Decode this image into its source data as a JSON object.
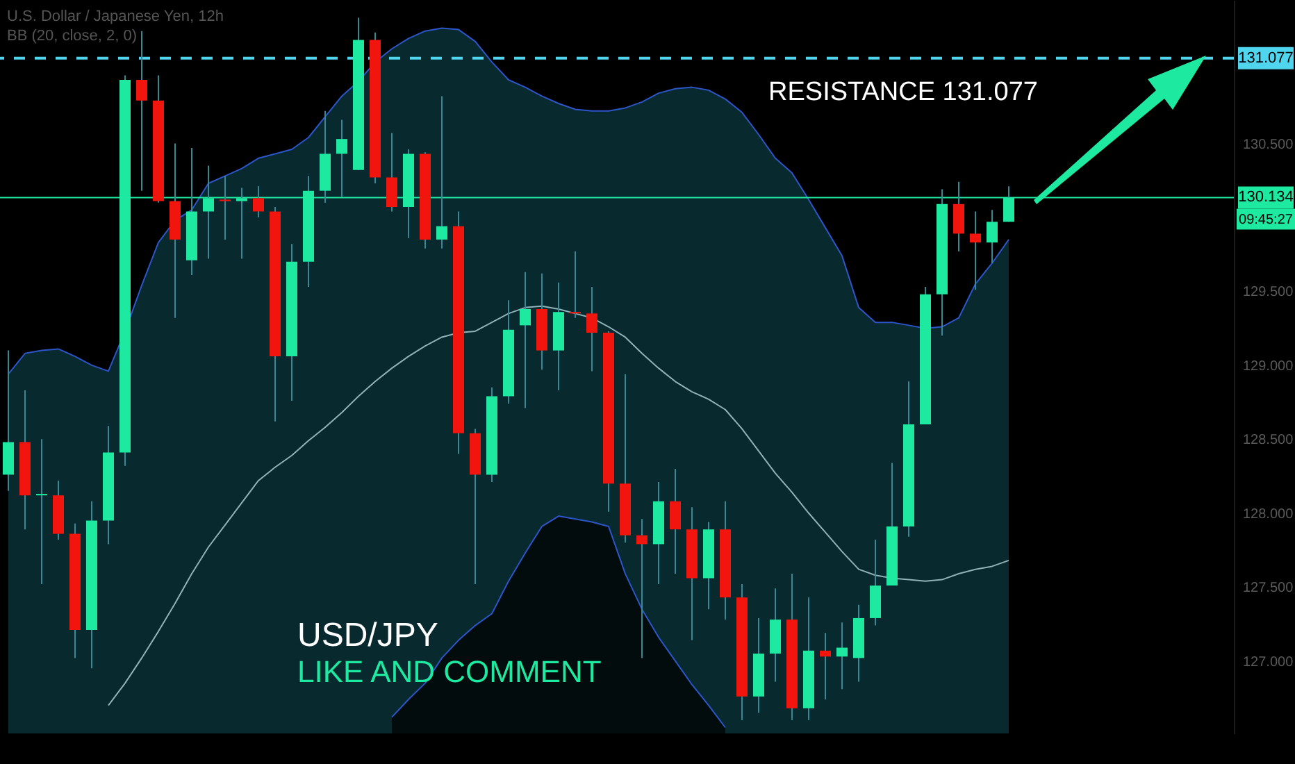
{
  "chart_data": {
    "type": "candlestick",
    "title": "U.S. Dollar / Japanese Yen, 12h",
    "subtitle": "BB (20, close, 2, 0)",
    "categories": [
      null,
      null,
      null,
      null,
      null,
      null,
      null,
      null,
      null,
      null,
      null,
      null,
      null,
      null,
      null,
      null,
      null,
      null,
      null,
      null,
      null,
      null,
      null,
      null,
      null,
      null,
      null,
      null,
      null,
      null,
      null,
      null,
      null,
      null,
      null,
      null,
      null,
      null,
      null,
      null,
      null,
      null,
      null,
      null,
      null,
      null,
      null,
      null,
      null,
      null,
      null,
      null,
      null,
      null,
      null,
      null,
      null,
      null,
      null,
      null,
      null,
      null,
      null,
      null,
      null,
      null,
      null,
      null,
      null,
      null,
      null,
      null,
      null,
      null
    ],
    "ohlc": [
      [
        128.26,
        129.1,
        128.15,
        128.48
      ],
      [
        128.48,
        128.83,
        127.89,
        128.12
      ],
      [
        128.12,
        128.5,
        127.52,
        128.13
      ],
      [
        128.12,
        128.22,
        127.82,
        127.86
      ],
      [
        127.86,
        127.93,
        127.02,
        127.21
      ],
      [
        127.21,
        128.08,
        126.95,
        127.95
      ],
      [
        127.95,
        128.59,
        127.79,
        128.41
      ],
      [
        128.41,
        130.96,
        128.32,
        130.93
      ],
      [
        130.93,
        131.26,
        130.18,
        130.79
      ],
      [
        130.79,
        130.96,
        130.1,
        130.11
      ],
      [
        130.11,
        130.5,
        129.32,
        129.85
      ],
      [
        129.71,
        130.47,
        129.61,
        130.04
      ],
      [
        130.04,
        130.35,
        129.72,
        130.13
      ],
      [
        130.12,
        130.28,
        129.85,
        130.11
      ],
      [
        130.11,
        130.2,
        129.72,
        130.13
      ],
      [
        130.13,
        130.21,
        130.0,
        130.04
      ],
      [
        130.04,
        130.07,
        128.62,
        129.06
      ],
      [
        129.06,
        129.82,
        128.76,
        129.7
      ],
      [
        129.7,
        130.28,
        129.53,
        130.18
      ],
      [
        130.18,
        130.72,
        130.1,
        130.43
      ],
      [
        130.43,
        130.66,
        130.14,
        130.53
      ],
      [
        130.32,
        131.35,
        130.32,
        131.2
      ],
      [
        131.2,
        131.25,
        130.23,
        130.27
      ],
      [
        130.27,
        130.57,
        130.04,
        130.07
      ],
      [
        130.07,
        130.46,
        129.86,
        130.43
      ],
      [
        130.43,
        130.44,
        129.79,
        129.85
      ],
      [
        129.85,
        130.82,
        129.79,
        129.94
      ],
      [
        129.94,
        130.04,
        128.4,
        128.54
      ],
      [
        128.54,
        128.57,
        127.52,
        128.26
      ],
      [
        128.26,
        128.85,
        128.21,
        128.79
      ],
      [
        128.79,
        129.44,
        128.74,
        129.24
      ],
      [
        129.27,
        129.63,
        128.71,
        129.38
      ],
      [
        129.38,
        129.62,
        128.97,
        129.1
      ],
      [
        129.1,
        129.56,
        128.83,
        129.36
      ],
      [
        129.36,
        129.77,
        129.32,
        129.35
      ],
      [
        129.35,
        129.53,
        128.96,
        129.22
      ],
      [
        129.22,
        129.23,
        128.01,
        128.2
      ],
      [
        128.2,
        128.94,
        127.8,
        127.85
      ],
      [
        127.85,
        127.96,
        127.02,
        127.79
      ],
      [
        127.79,
        128.21,
        127.52,
        128.08
      ],
      [
        128.08,
        128.3,
        127.59,
        127.89
      ],
      [
        127.89,
        128.04,
        127.14,
        127.56
      ],
      [
        127.56,
        127.94,
        127.35,
        127.89
      ],
      [
        127.89,
        128.08,
        127.28,
        127.43
      ],
      [
        127.43,
        127.52,
        126.6,
        126.76
      ],
      [
        126.76,
        127.29,
        126.65,
        127.05
      ],
      [
        127.05,
        127.49,
        126.86,
        127.28
      ],
      [
        127.28,
        127.59,
        126.6,
        126.68
      ],
      [
        126.68,
        127.43,
        126.6,
        127.07
      ],
      [
        127.07,
        127.19,
        126.74,
        127.03
      ],
      [
        127.03,
        127.26,
        126.81,
        127.09
      ],
      [
        127.02,
        127.38,
        126.86,
        127.29
      ],
      [
        127.29,
        127.82,
        127.24,
        127.51
      ],
      [
        127.51,
        128.34,
        127.51,
        127.91
      ],
      [
        127.91,
        128.89,
        127.84,
        128.6
      ],
      [
        128.6,
        129.53,
        128.6,
        129.48
      ],
      [
        129.48,
        130.19,
        129.2,
        130.09
      ],
      [
        130.09,
        130.24,
        129.77,
        129.89
      ],
      [
        129.89,
        130.04,
        129.51,
        129.83
      ],
      [
        129.83,
        130.05,
        129.69,
        129.97
      ],
      [
        129.97,
        130.21,
        129.97,
        130.134
      ],
      null,
      null,
      null,
      null,
      null,
      null,
      null,
      null,
      null,
      null,
      null,
      null,
      null
    ],
    "series": [
      {
        "type": "area",
        "color": "#0b3a42",
        "values": [
          128.94,
          129.08,
          129.1,
          129.11,
          129.06,
          129.0,
          128.96,
          129.23,
          129.54,
          129.83,
          129.98,
          130.05,
          130.23,
          130.28,
          130.33,
          130.4,
          130.43,
          130.46,
          130.54,
          130.68,
          130.82,
          130.92,
          131.05,
          131.14,
          131.21,
          131.26,
          131.28,
          131.27,
          131.19,
          131.05,
          130.93,
          130.88,
          130.82,
          130.77,
          130.73,
          130.72,
          130.72,
          130.74,
          130.78,
          130.84,
          130.87,
          130.88,
          130.86,
          130.8,
          130.71,
          130.56,
          130.4,
          130.3,
          130.12,
          129.93,
          129.74,
          129.39,
          129.29,
          129.29,
          129.27,
          129.25,
          129.26,
          129.32,
          129.55,
          129.69,
          129.85,
          null,
          null,
          null,
          null,
          null,
          null,
          null,
          null,
          null,
          null,
          null,
          null,
          null
        ]
      },
      {
        "type": "area",
        "color": "#000000",
        "values": [
          null,
          null,
          null,
          null,
          null,
          null,
          null,
          null,
          null,
          null,
          null,
          null,
          null,
          null,
          null,
          null,
          null,
          null,
          null,
          null,
          null,
          null,
          null,
          126.62,
          126.74,
          126.85,
          127.02,
          127.14,
          127.24,
          127.32,
          127.54,
          127.73,
          127.91,
          127.98,
          127.96,
          127.94,
          127.91,
          127.59,
          127.35,
          127.16,
          127.0,
          126.84,
          126.7,
          126.55,
          null,
          null,
          null,
          null,
          null,
          null,
          null,
          null,
          null,
          null,
          null,
          null,
          null,
          null,
          null,
          null,
          null,
          null,
          null,
          null,
          null,
          null,
          null,
          null,
          null,
          null,
          null,
          null,
          null,
          null
        ]
      },
      {
        "type": "line",
        "color": "#8fb3b8",
        "values": [
          null,
          null,
          null,
          null,
          null,
          null,
          126.7,
          126.85,
          127.02,
          127.2,
          127.39,
          127.59,
          127.77,
          127.92,
          128.07,
          128.22,
          128.31,
          128.39,
          128.49,
          128.58,
          128.68,
          128.79,
          128.89,
          128.98,
          129.06,
          129.13,
          129.19,
          129.22,
          129.23,
          129.29,
          129.35,
          129.39,
          129.4,
          129.38,
          129.35,
          129.32,
          129.26,
          129.19,
          129.08,
          128.98,
          128.89,
          128.82,
          128.77,
          128.7,
          128.57,
          128.42,
          128.27,
          128.14,
          128.0,
          127.87,
          127.74,
          127.62,
          127.58,
          127.56,
          127.55,
          127.54,
          127.55,
          127.59,
          127.62,
          127.64,
          127.68,
          null,
          null,
          null,
          null,
          null,
          null,
          null,
          null,
          null,
          null,
          null,
          null,
          null
        ]
      }
    ],
    "ylim": [
      126.51,
      131.47
    ],
    "yticks": [
      {
        "value": 127,
        "label": "127.000"
      },
      {
        "value": 127.5,
        "label": "127.500"
      },
      {
        "value": 128,
        "label": "128.000"
      },
      {
        "value": 128.5,
        "label": "128.500"
      },
      {
        "value": 129,
        "label": "129.000"
      },
      {
        "value": 129.5,
        "label": "129.500"
      },
      {
        "value": 130.5,
        "label": "130.500"
      }
    ],
    "ref_lines": [
      {
        "axis": "y",
        "value": 131.077,
        "label": "131.077",
        "color": "#4fd6ee",
        "line_style": "dashed"
      },
      {
        "axis": "y",
        "value": 130.134,
        "label": "130.134",
        "color": "#1de9a0",
        "line_style": "solid"
      }
    ],
    "annotations": [
      "RESISTANCE 131.077",
      "USD/JPY",
      "LIKE AND COMMENT",
      "09:45:27"
    ],
    "tick_labels": "y"
  }
}
